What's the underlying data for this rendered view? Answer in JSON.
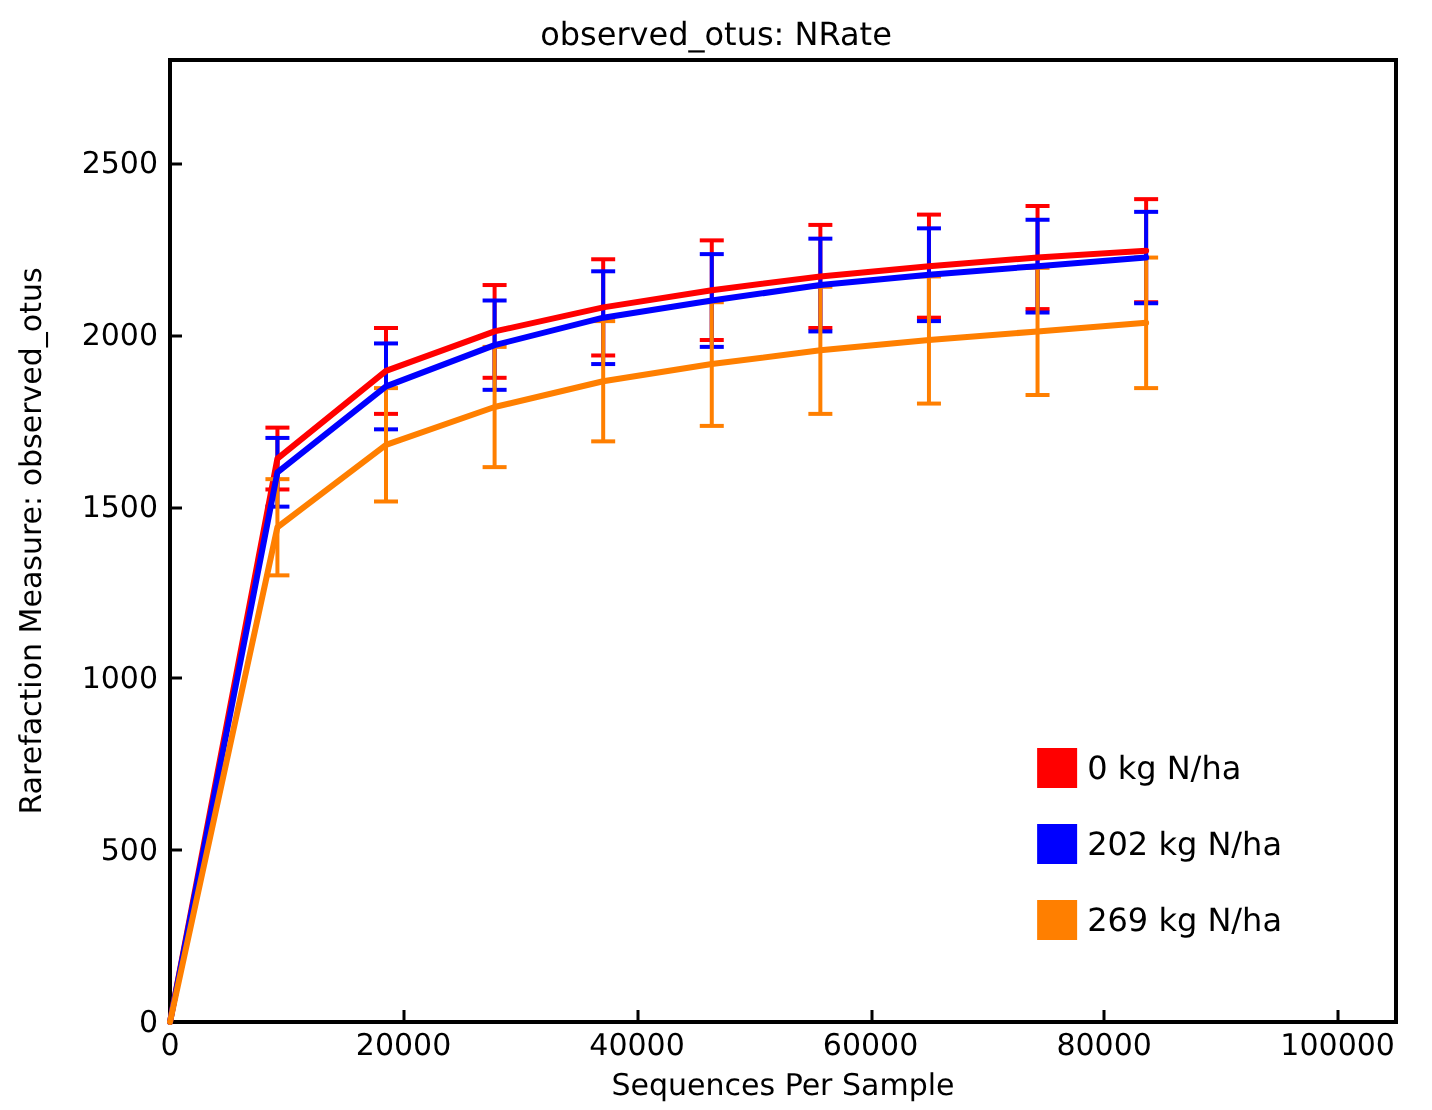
{
  "chart_data": {
    "type": "line",
    "title": "observed_otus: NRate",
    "xlabel": "Sequences Per Sample",
    "ylabel": "Rarefaction Measure: observed_otus",
    "x": [
      0,
      9200,
      18500,
      27800,
      37100,
      46400,
      55700,
      65000,
      74300,
      83600
    ],
    "series": [
      {
        "name": "0 kg N/ha",
        "color": "#ff0000",
        "values": [
          0,
          1640,
          1895,
          2010,
          2080,
          2130,
          2170,
          2200,
          2225,
          2245
        ],
        "errors": [
          null,
          90,
          125,
          135,
          140,
          145,
          150,
          150,
          150,
          150
        ]
      },
      {
        "name": "202 kg N/ha",
        "color": "#0000ff",
        "values": [
          0,
          1600,
          1850,
          1970,
          2050,
          2100,
          2145,
          2175,
          2200,
          2225
        ],
        "errors": [
          null,
          100,
          125,
          130,
          135,
          135,
          135,
          135,
          135,
          133
        ]
      },
      {
        "name": "269 kg N/ha",
        "color": "#ff7f00",
        "values": [
          0,
          1440,
          1680,
          1790,
          1865,
          1915,
          1955,
          1985,
          2010,
          2035
        ],
        "errors": [
          null,
          140,
          165,
          175,
          175,
          180,
          185,
          185,
          185,
          190
        ]
      }
    ],
    "xlim": [
      0,
      105000
    ],
    "xticks": [
      0,
      20000,
      40000,
      60000,
      80000,
      100000
    ],
    "ylim": [
      0,
      2800
    ],
    "yticks": [
      0,
      500,
      1000,
      1500,
      2000,
      2500
    ],
    "grid": false,
    "legend": "bottom right",
    "marker": "none",
    "line_style": "solid"
  }
}
